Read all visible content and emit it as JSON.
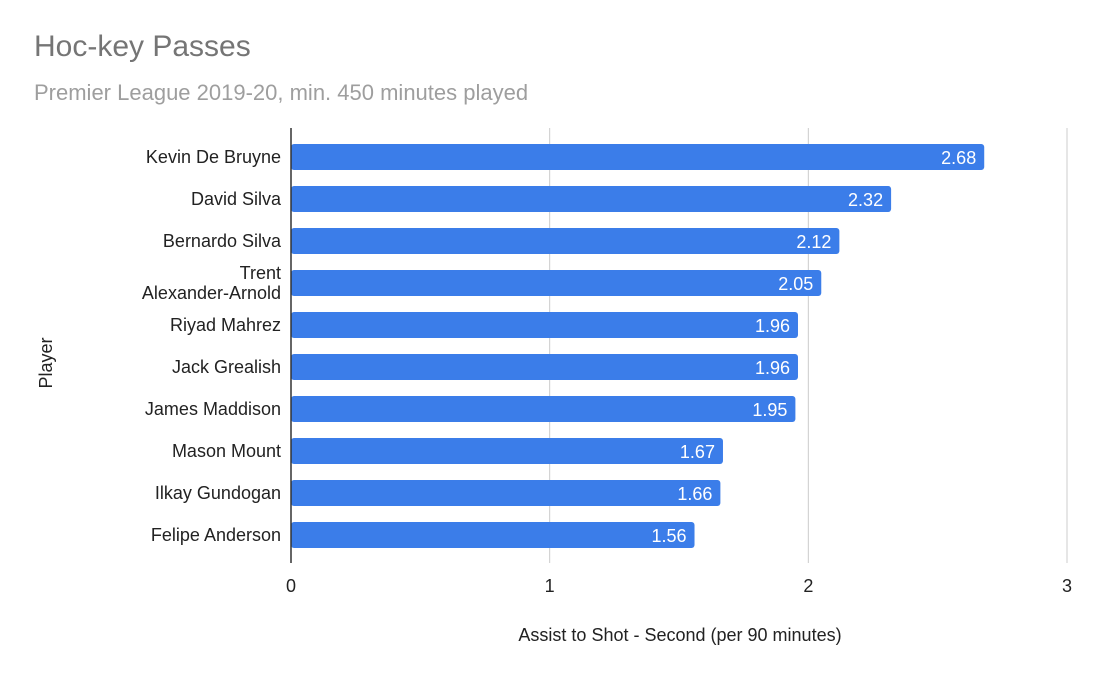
{
  "chart_data": {
    "type": "bar",
    "orientation": "horizontal",
    "title": "Hoc-key Passes",
    "subtitle": "Premier League 2019-20, min. 450 minutes played",
    "xlabel": "Assist to Shot - Second (per 90 minutes)",
    "ylabel": "Player",
    "xlim": [
      0,
      3
    ],
    "x_ticks": [
      "0",
      "1",
      "2",
      "3"
    ],
    "grid": true,
    "legend": "none",
    "bar_color": "#3b7de9",
    "categories": [
      [
        "Kevin De Bruyne"
      ],
      [
        "David Silva"
      ],
      [
        "Bernardo Silva"
      ],
      [
        "Trent",
        "Alexander-Arnold"
      ],
      [
        "Riyad Mahrez"
      ],
      [
        "Jack Grealish"
      ],
      [
        "James Maddison"
      ],
      [
        "Mason Mount"
      ],
      [
        "Ilkay Gundogan"
      ],
      [
        "Felipe Anderson"
      ]
    ],
    "values": [
      2.68,
      2.32,
      2.12,
      2.05,
      1.96,
      1.96,
      1.95,
      1.67,
      1.66,
      1.56
    ],
    "data_labels": [
      "2.68",
      "2.32",
      "2.12",
      "2.05",
      "1.96",
      "1.96",
      "1.95",
      "1.67",
      "1.66",
      "1.56"
    ]
  }
}
